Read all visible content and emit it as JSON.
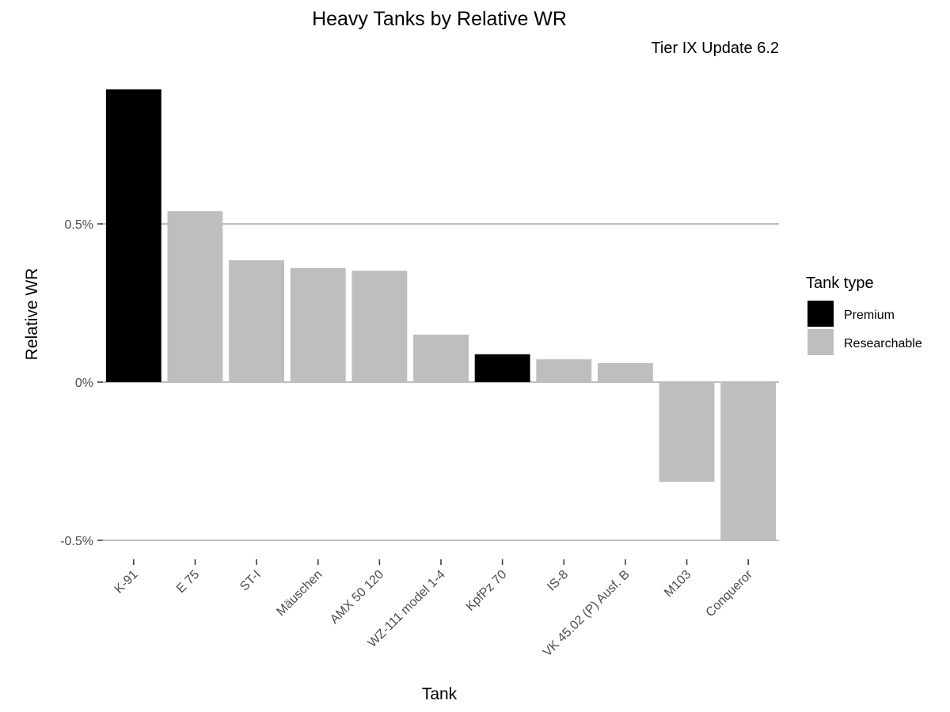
{
  "chart_data": {
    "type": "bar",
    "title": "Heavy Tanks by Relative WR",
    "subtitle": "Tier IX Update 6.2",
    "xlabel": "Tank",
    "ylabel": "Relative WR",
    "categories": [
      "K-91",
      "E 75",
      "ST-I",
      "Mäuschen",
      "AMX 50 120",
      "WZ-111 model 1-4",
      "KpfPz 70",
      "IS-8",
      "VK 45.02 (P) Ausf. B",
      "M103",
      "Conqueror"
    ],
    "values": [
      0.925,
      0.54,
      0.385,
      0.36,
      0.352,
      0.15,
      0.088,
      0.072,
      0.06,
      -0.315,
      -0.5
    ],
    "types": [
      "Premium",
      "Researchable",
      "Researchable",
      "Researchable",
      "Researchable",
      "Researchable",
      "Premium",
      "Researchable",
      "Researchable",
      "Researchable",
      "Researchable"
    ],
    "ylim": [
      -0.55,
      0.95
    ],
    "yticks": [
      -0.5,
      0,
      0.5
    ],
    "ytick_labels": [
      "-0.5%",
      "0%",
      "0.5%"
    ],
    "grid": true,
    "legend": {
      "title": "Tank type",
      "placement": "right",
      "entries": [
        {
          "label": "Premium",
          "color": "#000000"
        },
        {
          "label": "Researchable",
          "color": "#bebebe"
        }
      ]
    },
    "colors": {
      "Premium": "#000000",
      "Researchable": "#bebebe",
      "gridline": "#bebebe",
      "tick_text": "#4d4d4d"
    }
  }
}
